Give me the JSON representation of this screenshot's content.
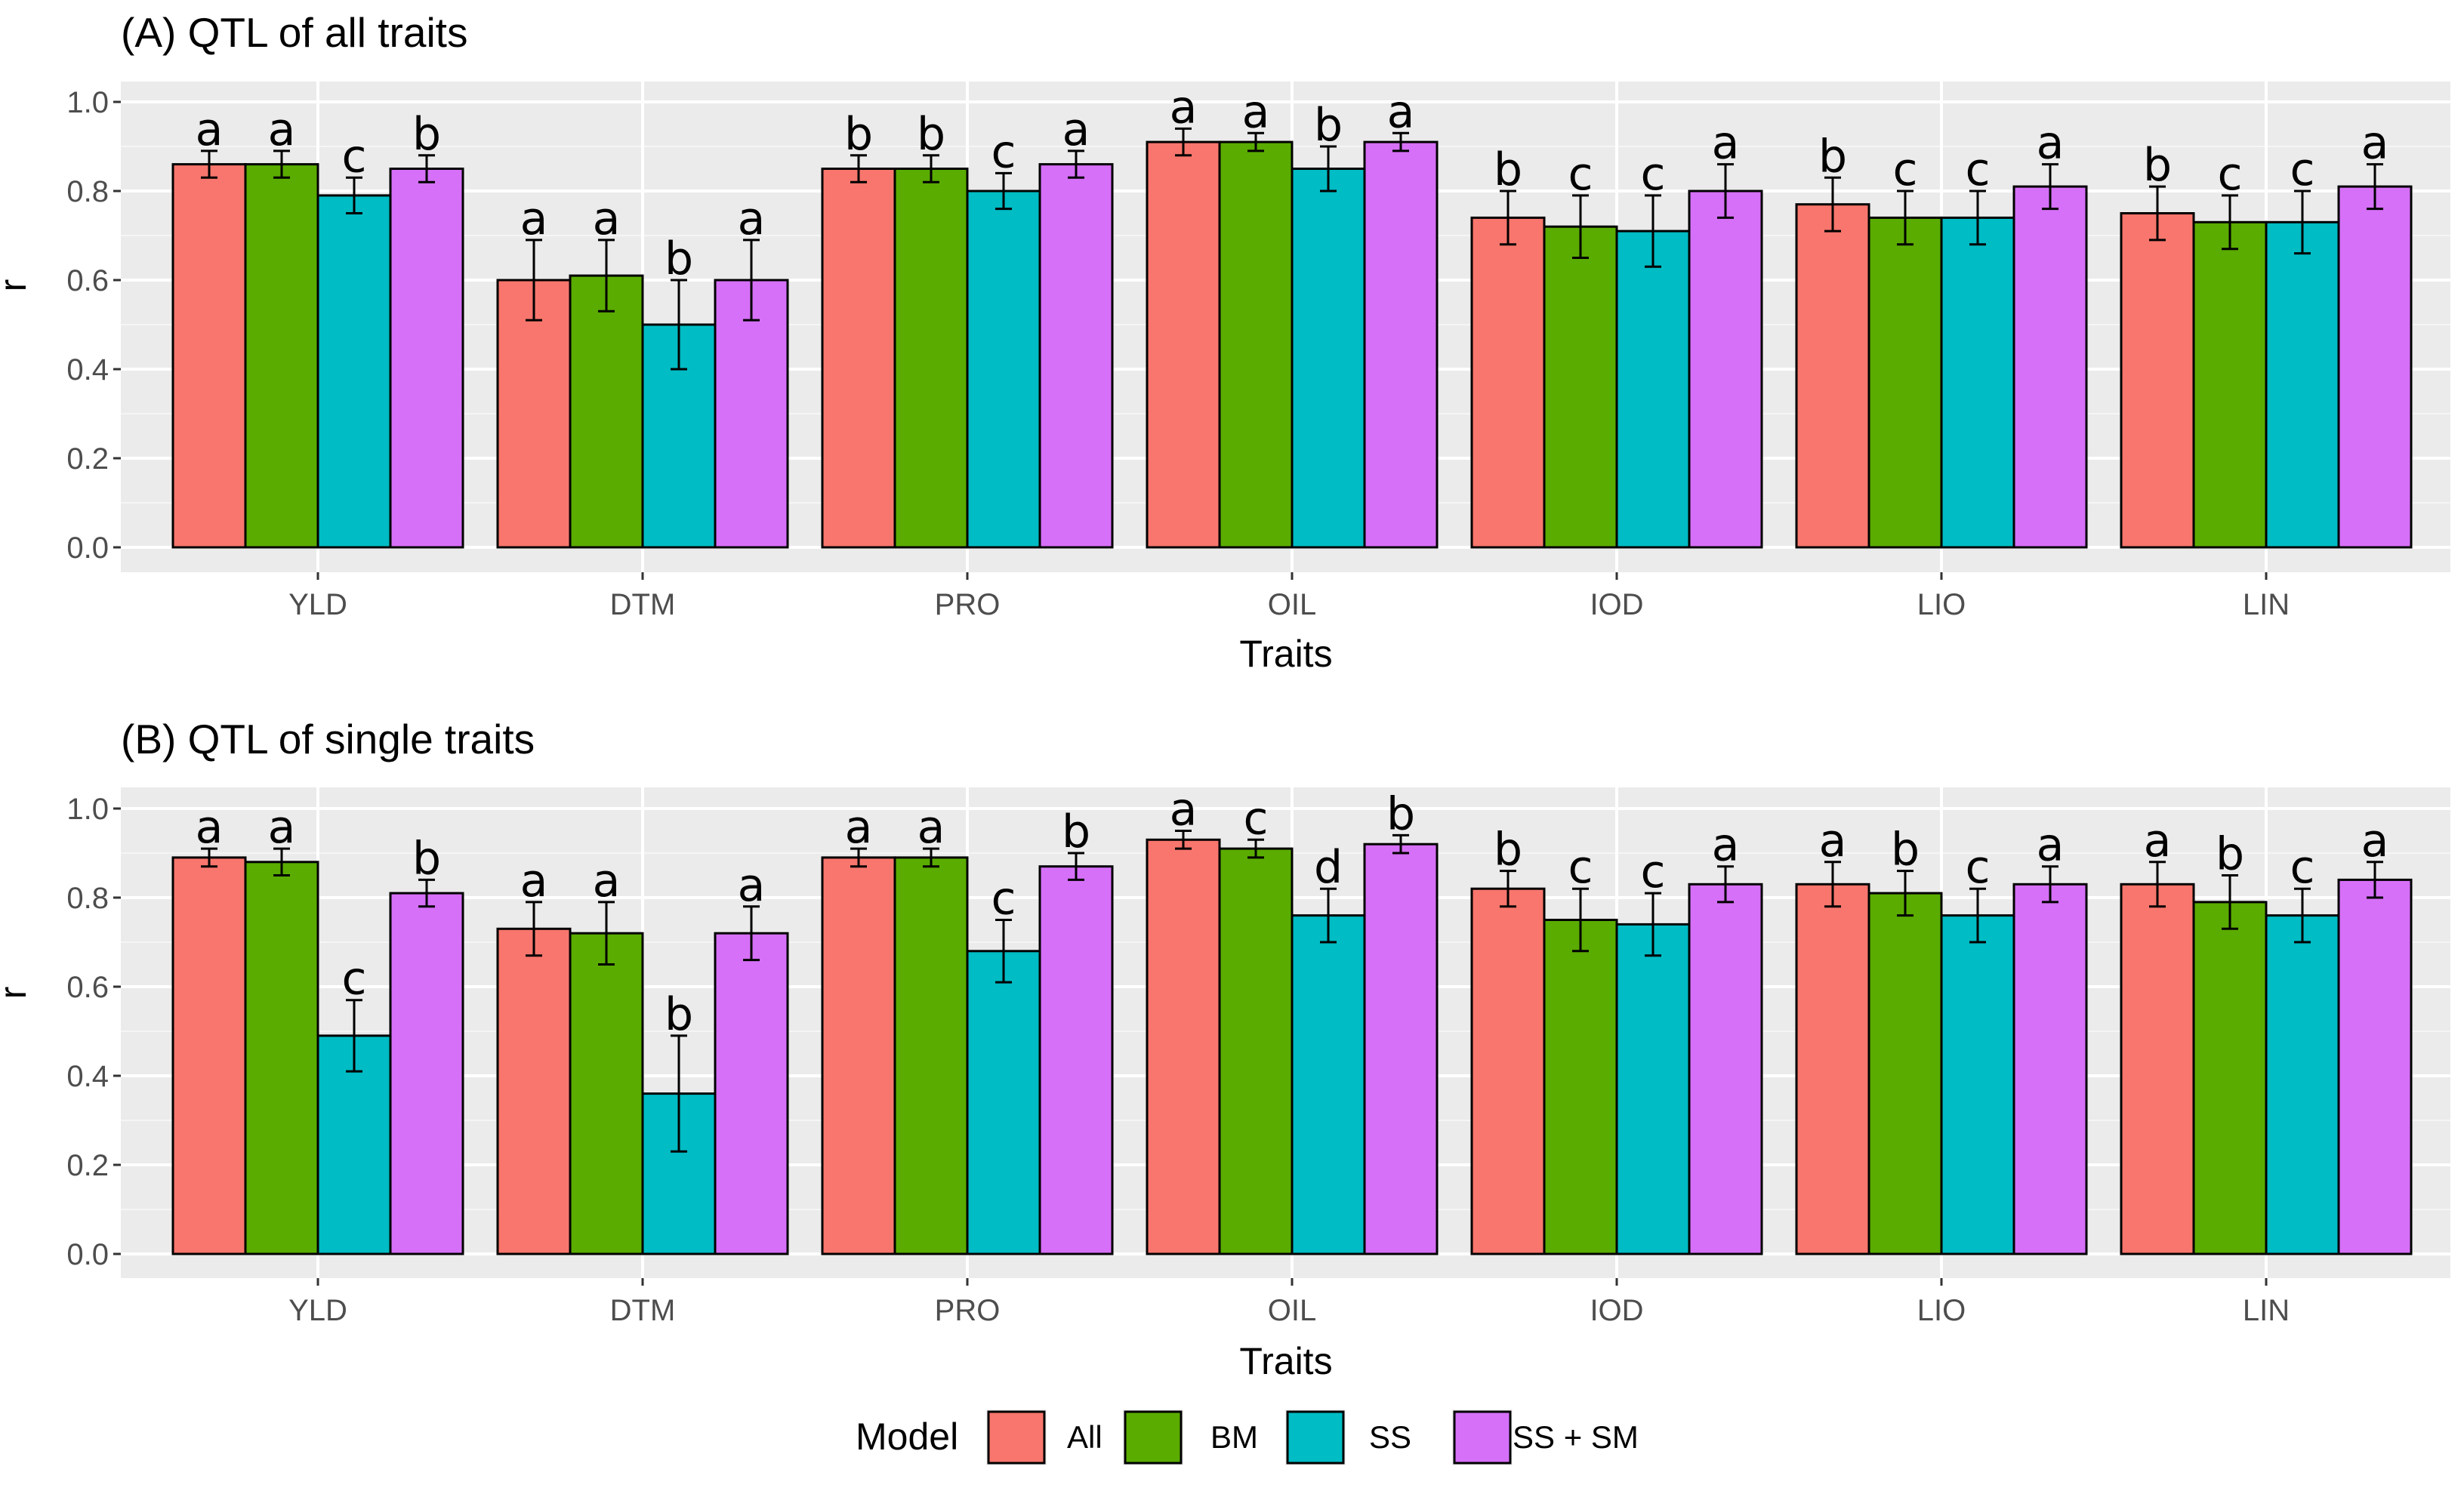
{
  "legend": {
    "title": "Model",
    "items": [
      {
        "label": "All",
        "color": "#f8766d"
      },
      {
        "label": "BM",
        "color": "#5aac00"
      },
      {
        "label": "SS",
        "color": "#00bcc4"
      },
      {
        "label": "SS + SM",
        "color": "#d670f8"
      }
    ]
  },
  "chart_data": [
    {
      "type": "bar",
      "title": "(A) QTL  of all  traits",
      "xlabel": "Traits",
      "ylabel": "r",
      "ylim": [
        0,
        1.06
      ],
      "yticks": [
        "0.0",
        "0.2",
        "0.4",
        "0.6",
        "0.8",
        "1.0"
      ],
      "categories": [
        "YLD",
        "DTM",
        "PRO",
        "OIL",
        "IOD",
        "LIO",
        "LIN"
      ],
      "series": [
        {
          "name": "All",
          "values": [
            0.86,
            0.6,
            0.85,
            0.91,
            0.74,
            0.77,
            0.75
          ],
          "errors": [
            0.03,
            0.09,
            0.03,
            0.03,
            0.06,
            0.06,
            0.06
          ],
          "letters": [
            "a",
            "a",
            "b",
            "a",
            "b",
            "b",
            "b"
          ]
        },
        {
          "name": "BM",
          "values": [
            0.86,
            0.61,
            0.85,
            0.91,
            0.72,
            0.74,
            0.73
          ],
          "errors": [
            0.03,
            0.08,
            0.03,
            0.02,
            0.07,
            0.06,
            0.06
          ],
          "letters": [
            "a",
            "a",
            "b",
            "a",
            "c",
            "c",
            "c"
          ]
        },
        {
          "name": "SS",
          "values": [
            0.79,
            0.5,
            0.8,
            0.85,
            0.71,
            0.74,
            0.73
          ],
          "errors": [
            0.04,
            0.1,
            0.04,
            0.05,
            0.08,
            0.06,
            0.07
          ],
          "letters": [
            "c",
            "b",
            "c",
            "b",
            "c",
            "c",
            "c"
          ]
        },
        {
          "name": "SS + SM",
          "values": [
            0.85,
            0.6,
            0.86,
            0.91,
            0.8,
            0.81,
            0.81
          ],
          "errors": [
            0.03,
            0.09,
            0.03,
            0.02,
            0.06,
            0.05,
            0.05
          ],
          "letters": [
            "b",
            "a",
            "a",
            "a",
            "a",
            "a",
            "a"
          ]
        }
      ]
    },
    {
      "type": "bar",
      "title": "(B) QTL  of single  traits",
      "xlabel": "Traits",
      "ylabel": "r",
      "ylim": [
        0,
        1.06
      ],
      "yticks": [
        "0.0",
        "0.2",
        "0.4",
        "0.6",
        "0.8",
        "1.0"
      ],
      "categories": [
        "YLD",
        "DTM",
        "PRO",
        "OIL",
        "IOD",
        "LIO",
        "LIN"
      ],
      "series": [
        {
          "name": "All",
          "values": [
            0.89,
            0.73,
            0.89,
            0.93,
            0.82,
            0.83,
            0.83
          ],
          "errors": [
            0.02,
            0.06,
            0.02,
            0.02,
            0.04,
            0.05,
            0.05
          ],
          "letters": [
            "a",
            "a",
            "a",
            "a",
            "b",
            "a",
            "a"
          ]
        },
        {
          "name": "BM",
          "values": [
            0.88,
            0.72,
            0.89,
            0.91,
            0.75,
            0.81,
            0.79
          ],
          "errors": [
            0.03,
            0.07,
            0.02,
            0.02,
            0.07,
            0.05,
            0.06
          ],
          "letters": [
            "a",
            "a",
            "a",
            "c",
            "c",
            "b",
            "b"
          ]
        },
        {
          "name": "SS",
          "values": [
            0.49,
            0.36,
            0.68,
            0.76,
            0.74,
            0.76,
            0.76
          ],
          "errors": [
            0.08,
            0.13,
            0.07,
            0.06,
            0.07,
            0.06,
            0.06
          ],
          "letters": [
            "c",
            "b",
            "c",
            "d",
            "c",
            "c",
            "c"
          ]
        },
        {
          "name": "SS + SM",
          "values": [
            0.81,
            0.72,
            0.87,
            0.92,
            0.83,
            0.83,
            0.84
          ],
          "errors": [
            0.03,
            0.06,
            0.03,
            0.02,
            0.04,
            0.04,
            0.04
          ],
          "letters": [
            "b",
            "a",
            "b",
            "b",
            "a",
            "a",
            "a"
          ]
        }
      ]
    }
  ]
}
